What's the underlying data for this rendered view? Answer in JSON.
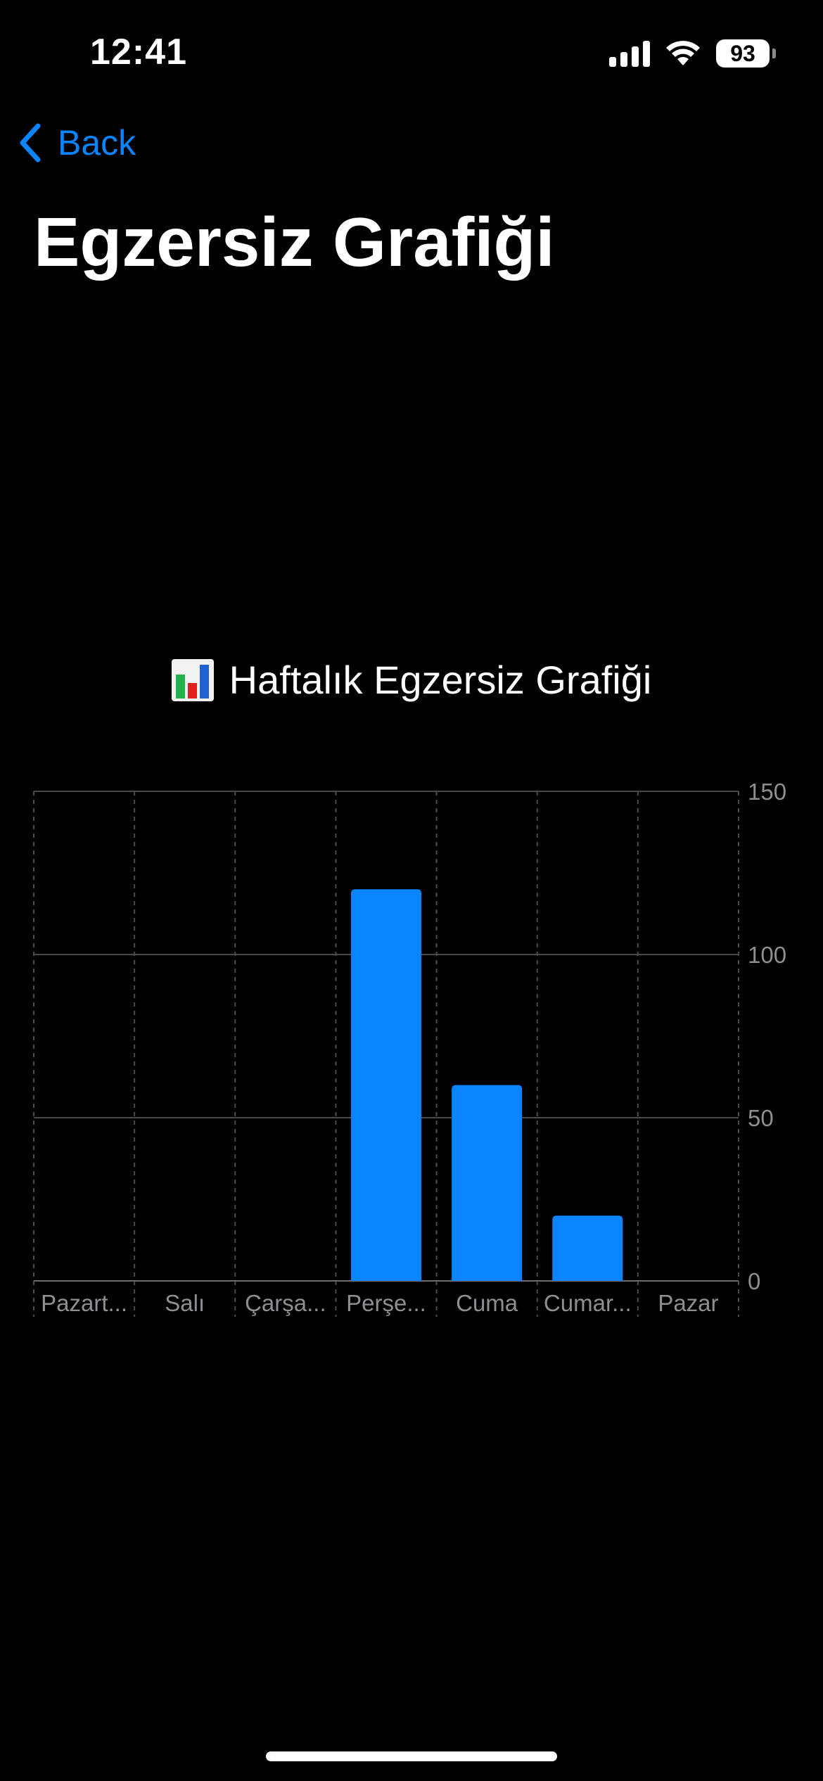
{
  "status_bar": {
    "time": "12:41",
    "battery": "93",
    "icons": [
      "signal-icon",
      "wifi-icon",
      "battery-icon"
    ]
  },
  "nav": {
    "back_label": "Back"
  },
  "page": {
    "title": "Egzersiz Grafiği"
  },
  "chart": {
    "title": "Haftalık Egzersiz Grafiği",
    "title_icon": "bar-chart-emoji-icon"
  },
  "colors": {
    "accent": "#0a84ff",
    "bar": "#0a84ff",
    "background": "#000000",
    "axis_text": "#8e8e93"
  },
  "chart_data": {
    "type": "bar",
    "categories": [
      "Pazart...",
      "Salı",
      "Çarşa...",
      "Perşe...",
      "Cuma",
      "Cumar...",
      "Pazar"
    ],
    "values": [
      0,
      0,
      0,
      120,
      60,
      20,
      0
    ],
    "ylim": [
      0,
      150
    ],
    "yticks": [
      0,
      50,
      100,
      150
    ],
    "grid": true,
    "y_axis_position": "right",
    "title": "Haftalık Egzersiz Grafiği"
  }
}
